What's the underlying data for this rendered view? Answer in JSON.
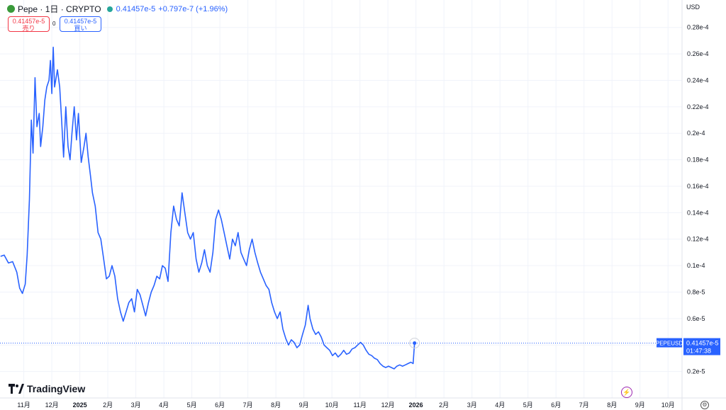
{
  "header": {
    "symbol_title": "Pepe · 1日 · CRYPTO",
    "price": "0.41457e-5",
    "change": "+0.797e-7 (+1.96%)"
  },
  "trade": {
    "sell_price": "0.41457e-5",
    "sell_label": "売り",
    "spread": "0",
    "buy_price": "0.41457e-5",
    "buy_label": "買い"
  },
  "axis": {
    "currency": "USD"
  },
  "last_price": {
    "ticker": "PEPEUSD",
    "price": "0.41457e-5",
    "countdown": "01:47:38"
  },
  "branding": {
    "logo_text": "TradingView"
  },
  "colors": {
    "line": "#2962ff",
    "sell": "#f23645",
    "buy": "#2962ff",
    "label_bg": "#2962ff"
  },
  "chart_data": {
    "type": "line",
    "y_tick_labels": [
      "0.2e-5",
      "0.4e-5",
      "0.6e-5",
      "0.8e-5",
      "0.1e-4",
      "0.12e-4",
      "0.14e-4",
      "0.16e-4",
      "0.18e-4",
      "0.2e-4",
      "0.22e-4",
      "0.24e-4",
      "0.26e-4",
      "0.28e-4"
    ],
    "y_tick_values": [
      0.2,
      0.4,
      0.6,
      0.8,
      1.0,
      1.2,
      1.4,
      1.6,
      1.8,
      2.0,
      2.2,
      2.4,
      2.6,
      2.8
    ],
    "ylim": [
      0.0,
      2.9
    ],
    "x_tick_labels": [
      "11月",
      "12月",
      "2025",
      "2月",
      "3月",
      "4月",
      "5月",
      "6月",
      "7月",
      "8月",
      "9月",
      "10月",
      "11月",
      "12月",
      "2026",
      "2月",
      "3月",
      "4月",
      "5月",
      "6月",
      "7月",
      "8月",
      "9月",
      "10月"
    ],
    "x_tick_values": [
      1,
      2,
      3,
      4,
      5,
      6,
      7,
      8,
      9,
      10,
      11,
      12,
      13,
      14,
      15,
      16,
      17,
      18,
      19,
      20,
      21,
      22,
      23,
      24
    ],
    "xlim": [
      0.15,
      24.5
    ],
    "grid": true,
    "last_value": 0.41457,
    "series": [
      {
        "values": [
          [
            0.17,
            1.07
          ],
          [
            0.3,
            1.08
          ],
          [
            0.45,
            1.02
          ],
          [
            0.6,
            1.03
          ],
          [
            0.75,
            0.95
          ],
          [
            0.85,
            0.83
          ],
          [
            0.95,
            0.79
          ],
          [
            1.05,
            0.86
          ],
          [
            1.12,
            1.08
          ],
          [
            1.2,
            1.5
          ],
          [
            1.27,
            2.1
          ],
          [
            1.33,
            1.85
          ],
          [
            1.4,
            2.42
          ],
          [
            1.47,
            2.05
          ],
          [
            1.55,
            2.15
          ],
          [
            1.6,
            1.9
          ],
          [
            1.68,
            2.05
          ],
          [
            1.75,
            2.25
          ],
          [
            1.82,
            2.35
          ],
          [
            1.9,
            2.4
          ],
          [
            1.95,
            2.55
          ],
          [
            2.0,
            2.3
          ],
          [
            2.05,
            2.65
          ],
          [
            2.1,
            2.35
          ],
          [
            2.2,
            2.48
          ],
          [
            2.28,
            2.35
          ],
          [
            2.35,
            2.1
          ],
          [
            2.42,
            1.82
          ],
          [
            2.5,
            2.2
          ],
          [
            2.58,
            1.9
          ],
          [
            2.65,
            1.8
          ],
          [
            2.72,
            2.0
          ],
          [
            2.8,
            2.2
          ],
          [
            2.88,
            1.95
          ],
          [
            2.95,
            2.15
          ],
          [
            3.05,
            1.78
          ],
          [
            3.15,
            1.9
          ],
          [
            3.22,
            2.0
          ],
          [
            3.3,
            1.82
          ],
          [
            3.38,
            1.68
          ],
          [
            3.45,
            1.55
          ],
          [
            3.55,
            1.45
          ],
          [
            3.65,
            1.25
          ],
          [
            3.75,
            1.2
          ],
          [
            3.85,
            1.05
          ],
          [
            3.95,
            0.9
          ],
          [
            4.05,
            0.92
          ],
          [
            4.15,
            1.0
          ],
          [
            4.25,
            0.92
          ],
          [
            4.35,
            0.75
          ],
          [
            4.45,
            0.65
          ],
          [
            4.55,
            0.58
          ],
          [
            4.65,
            0.65
          ],
          [
            4.75,
            0.72
          ],
          [
            4.85,
            0.75
          ],
          [
            4.95,
            0.65
          ],
          [
            5.05,
            0.82
          ],
          [
            5.15,
            0.78
          ],
          [
            5.25,
            0.7
          ],
          [
            5.35,
            0.62
          ],
          [
            5.45,
            0.72
          ],
          [
            5.55,
            0.8
          ],
          [
            5.65,
            0.85
          ],
          [
            5.75,
            0.92
          ],
          [
            5.85,
            0.9
          ],
          [
            5.95,
            1.0
          ],
          [
            6.05,
            0.98
          ],
          [
            6.15,
            0.88
          ],
          [
            6.25,
            1.25
          ],
          [
            6.35,
            1.45
          ],
          [
            6.45,
            1.35
          ],
          [
            6.55,
            1.3
          ],
          [
            6.65,
            1.55
          ],
          [
            6.75,
            1.4
          ],
          [
            6.85,
            1.25
          ],
          [
            6.95,
            1.2
          ],
          [
            7.05,
            1.25
          ],
          [
            7.15,
            1.05
          ],
          [
            7.25,
            0.95
          ],
          [
            7.35,
            1.02
          ],
          [
            7.45,
            1.12
          ],
          [
            7.55,
            1.0
          ],
          [
            7.65,
            0.95
          ],
          [
            7.75,
            1.1
          ],
          [
            7.85,
            1.35
          ],
          [
            7.95,
            1.42
          ],
          [
            8.05,
            1.35
          ],
          [
            8.15,
            1.25
          ],
          [
            8.25,
            1.15
          ],
          [
            8.35,
            1.05
          ],
          [
            8.45,
            1.2
          ],
          [
            8.55,
            1.15
          ],
          [
            8.65,
            1.25
          ],
          [
            8.75,
            1.1
          ],
          [
            8.85,
            1.05
          ],
          [
            8.95,
            1.0
          ],
          [
            9.05,
            1.12
          ],
          [
            9.15,
            1.2
          ],
          [
            9.25,
            1.1
          ],
          [
            9.35,
            1.02
          ],
          [
            9.45,
            0.95
          ],
          [
            9.55,
            0.9
          ],
          [
            9.65,
            0.85
          ],
          [
            9.75,
            0.82
          ],
          [
            9.85,
            0.72
          ],
          [
            9.95,
            0.65
          ],
          [
            10.05,
            0.6
          ],
          [
            10.15,
            0.65
          ],
          [
            10.25,
            0.52
          ],
          [
            10.35,
            0.45
          ],
          [
            10.45,
            0.4
          ],
          [
            10.55,
            0.44
          ],
          [
            10.65,
            0.42
          ],
          [
            10.75,
            0.38
          ],
          [
            10.85,
            0.4
          ],
          [
            10.95,
            0.48
          ],
          [
            11.05,
            0.55
          ],
          [
            11.15,
            0.7
          ],
          [
            11.22,
            0.6
          ],
          [
            11.32,
            0.52
          ],
          [
            11.42,
            0.48
          ],
          [
            11.52,
            0.5
          ],
          [
            11.62,
            0.46
          ],
          [
            11.72,
            0.4
          ],
          [
            11.82,
            0.38
          ],
          [
            11.92,
            0.36
          ],
          [
            12.02,
            0.32
          ],
          [
            12.12,
            0.34
          ],
          [
            12.22,
            0.31
          ],
          [
            12.32,
            0.33
          ],
          [
            12.42,
            0.36
          ],
          [
            12.52,
            0.33
          ],
          [
            12.62,
            0.34
          ],
          [
            12.72,
            0.37
          ],
          [
            12.82,
            0.38
          ],
          [
            12.92,
            0.4
          ],
          [
            13.02,
            0.42
          ],
          [
            13.12,
            0.4
          ],
          [
            13.22,
            0.36
          ],
          [
            13.32,
            0.33
          ],
          [
            13.42,
            0.32
          ],
          [
            13.52,
            0.3
          ],
          [
            13.62,
            0.29
          ],
          [
            13.72,
            0.26
          ],
          [
            13.82,
            0.24
          ],
          [
            13.92,
            0.23
          ],
          [
            14.02,
            0.24
          ],
          [
            14.12,
            0.23
          ],
          [
            14.22,
            0.22
          ],
          [
            14.32,
            0.24
          ],
          [
            14.42,
            0.25
          ],
          [
            14.52,
            0.24
          ],
          [
            14.62,
            0.25
          ],
          [
            14.72,
            0.26
          ],
          [
            14.82,
            0.27
          ],
          [
            14.9,
            0.26
          ],
          [
            14.95,
            0.41457
          ]
        ]
      }
    ]
  }
}
